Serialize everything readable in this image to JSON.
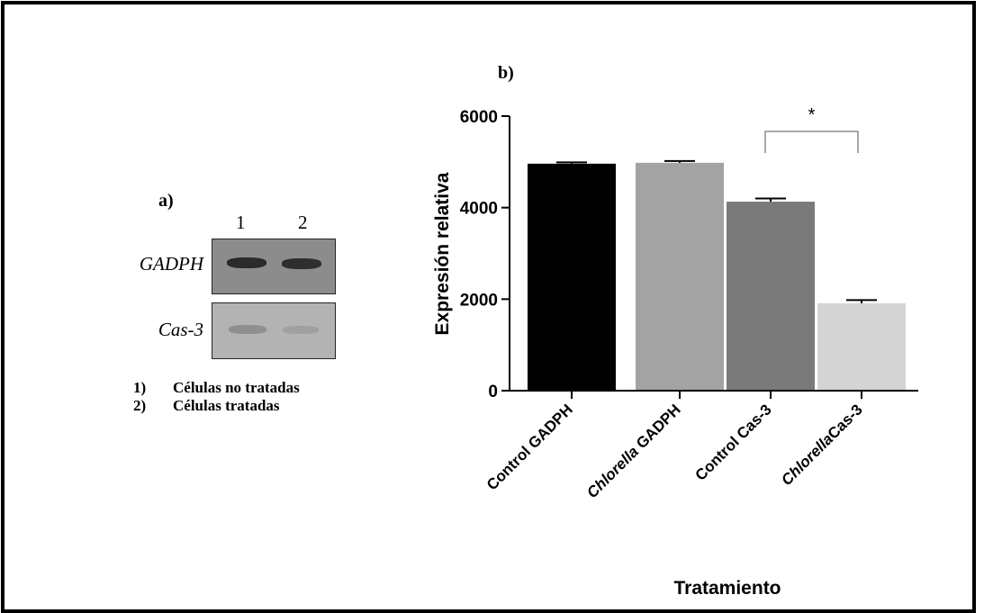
{
  "panel_a": {
    "label": "a)",
    "lanes": [
      "1",
      "2"
    ],
    "genes": [
      {
        "name": "GADPH"
      },
      {
        "name": "Cas-3"
      }
    ],
    "legend": [
      {
        "num": "1)",
        "text": "Células no tratadas"
      },
      {
        "num": "2)",
        "text": "Células tratadas"
      }
    ]
  },
  "panel_b": {
    "label": "b)"
  },
  "colors": {
    "bar_control_gadph": "#000000",
    "bar_chlorella_gadph": "#a3a3a3",
    "bar_control_cas3": "#7a7a7a",
    "bar_chlorella_cas3": "#d4d4d4"
  },
  "chart_data": {
    "type": "bar",
    "categories": [
      {
        "parts": [
          {
            "text": "Control GADPH",
            "italic": false
          }
        ]
      },
      {
        "parts": [
          {
            "text": "Chlorella",
            "italic": true
          },
          {
            "text": " GADPH",
            "italic": false
          }
        ]
      },
      {
        "parts": [
          {
            "text": "Control Cas-3",
            "italic": false
          }
        ]
      },
      {
        "parts": [
          {
            "text": "Chlorella",
            "italic": true
          },
          {
            "text": "Cas-3",
            "italic": false
          }
        ]
      }
    ],
    "values": [
      4960,
      4980,
      4130,
      1910
    ],
    "errors": [
      30,
      40,
      70,
      70
    ],
    "xlabel": "Tratamiento",
    "ylabel": "Expresión relativa",
    "ylim": [
      0,
      6000
    ],
    "yticks": [
      0,
      2000,
      4000,
      6000
    ],
    "significance": {
      "between": [
        2,
        3
      ],
      "label": "*"
    }
  }
}
